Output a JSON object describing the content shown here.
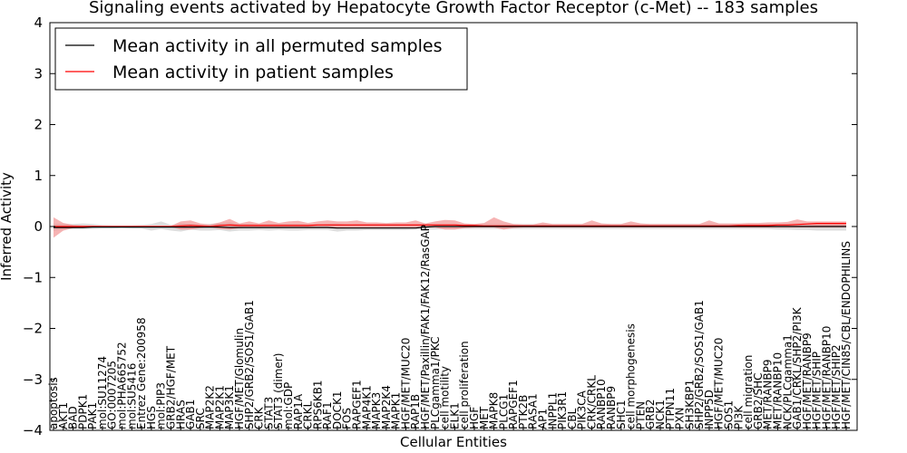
{
  "chart_data": {
    "type": "line",
    "title": "Signaling events activated by Hepatocyte Growth Factor Receptor (c-Met) -- 183 samples",
    "xlabel": "Cellular Entities",
    "ylabel": "Inferred Activity",
    "ylim": [
      -4,
      4
    ],
    "yticks": [
      -4,
      -3,
      -2,
      -1,
      0,
      1,
      2,
      3,
      4
    ],
    "grid": false,
    "legend_position": "top-left",
    "categories": [
      "apoptosis",
      "AKT1",
      "BAD",
      "PDPK1",
      "PAK1",
      "mol:SU11274",
      "GO:0007205",
      "mol:PHA665752",
      "mol:SU5416",
      "Entrez Gene:200958",
      "HGS",
      "mol:PIP3",
      "GRB2/HGF/MET",
      "HRAS",
      "GAB1",
      "SRC",
      "MAP2K2",
      "MAP2K1",
      "MAP3K1",
      "HGF/MET/Glomulin",
      "SHP2/GRB2/SOS1/GAB1",
      "CRK",
      "STAT3",
      "STAT3 (dimer)",
      "mol:GDP",
      "RAP1A",
      "CRKL",
      "RPS6KB1",
      "RAF1",
      "DOCK1",
      "FOS",
      "RAPGEF1",
      "MAP4K1",
      "MAPK3",
      "MAP2K4",
      "MAPK1",
      "HGF/MET/MUC20",
      "RAP1B",
      "HGF/MET/Paxillin/FAK1/FAK12/RasGAP",
      "PLCgamma1/PKC",
      "cell motility",
      "ELK1",
      "cell proliferation",
      "HGF",
      "MET",
      "MAPK8",
      "PLCG1",
      "RAPGEF1",
      "PTK2B",
      "RASA1",
      "AP1",
      "INPPL1",
      "PIK3R1",
      "CBL",
      "PIK3CA",
      "CRK/CRKL",
      "RANBP10",
      "RANBP9",
      "SHC1",
      "cell morphogenesis",
      "PTEN",
      "GRB2",
      "NCK1",
      "PTPN11",
      "PXN",
      "SH3KBP1",
      "SHP2/GRB2/SOS1/GAB1",
      "INPP5D",
      "HGF/MET/MUC20",
      "SOS1",
      "PI3K",
      "cell migration",
      "GRB2/SHC",
      "MET/RANBP9",
      "MET/RANBP10",
      "NCK/PLCgamma1",
      "GAB1/CRKL/SHP2/PI3K",
      "HGF/MET/RANBP9",
      "HGF/MET/SHIP",
      "HGF/MET/RANBP10",
      "HGF/MET/SHIP2",
      "HGF/MET/CIN85/CBL/ENDOPHILINS"
    ],
    "series": [
      {
        "name": "Mean activity in all permuted samples",
        "color": "#000000",
        "values": [
          -0.02,
          -0.02,
          -0.02,
          -0.02,
          -0.01,
          -0.01,
          -0.01,
          -0.01,
          -0.01,
          -0.01,
          -0.01,
          -0.01,
          -0.01,
          -0.01,
          -0.01,
          -0.01,
          -0.01,
          -0.01,
          -0.02,
          -0.02,
          -0.02,
          -0.02,
          -0.02,
          -0.02,
          -0.02,
          -0.02,
          -0.02,
          -0.02,
          -0.02,
          -0.03,
          -0.03,
          -0.03,
          -0.03,
          -0.03,
          -0.03,
          -0.03,
          -0.03,
          -0.03,
          -0.01,
          0.0,
          0.0,
          0.0,
          0.0,
          0.0,
          0.0,
          0.0,
          0.0,
          0.0,
          0.0,
          0.0,
          0.0,
          0.0,
          0.0,
          0.0,
          0.0,
          0.0,
          0.0,
          0.0,
          0.0,
          0.0,
          0.0,
          0.0,
          0.0,
          0.0,
          0.0,
          0.0,
          0.0,
          0.0,
          0.0,
          0.0,
          0.0,
          0.0,
          0.0,
          0.0,
          0.0,
          0.0,
          0.0,
          0.0,
          0.0,
          0.0,
          0.0,
          0.0
        ],
        "band_lower": [
          -0.08,
          -0.06,
          -0.05,
          -0.05,
          -0.05,
          -0.04,
          -0.04,
          -0.03,
          -0.04,
          -0.04,
          -0.08,
          -0.05,
          -0.08,
          -0.1,
          -0.06,
          -0.08,
          -0.08,
          -0.07,
          -0.1,
          -0.08,
          -0.08,
          -0.07,
          -0.08,
          -0.07,
          -0.08,
          -0.08,
          -0.07,
          -0.07,
          -0.07,
          -0.1,
          -0.08,
          -0.08,
          -0.07,
          -0.07,
          -0.07,
          -0.07,
          -0.07,
          -0.06,
          -0.06,
          -0.06,
          -0.05,
          -0.05,
          -0.05,
          -0.05,
          -0.05,
          -0.05,
          -0.05,
          -0.05,
          -0.05,
          -0.05,
          -0.05,
          -0.05,
          -0.05,
          -0.05,
          -0.05,
          -0.05,
          -0.05,
          -0.05,
          -0.05,
          -0.05,
          -0.05,
          -0.05,
          -0.05,
          -0.05,
          -0.05,
          -0.05,
          -0.05,
          -0.05,
          -0.05,
          -0.05,
          -0.05,
          -0.05,
          -0.05,
          -0.05,
          -0.06,
          -0.06,
          -0.07,
          -0.07,
          -0.08,
          -0.08,
          -0.08,
          -0.08
        ],
        "band_upper": [
          0.05,
          0.05,
          0.05,
          0.06,
          0.05,
          0.03,
          0.02,
          0.02,
          0.02,
          0.03,
          0.05,
          0.1,
          0.03,
          0.06,
          0.05,
          0.03,
          0.05,
          0.07,
          0.08,
          0.05,
          0.05,
          0.04,
          0.05,
          0.05,
          0.05,
          0.05,
          0.04,
          0.04,
          0.05,
          0.06,
          0.04,
          0.05,
          0.05,
          0.05,
          0.05,
          0.05,
          0.05,
          0.05,
          0.05,
          0.05,
          0.05,
          0.05,
          0.05,
          0.05,
          0.05,
          0.05,
          0.05,
          0.05,
          0.05,
          0.05,
          0.05,
          0.05,
          0.05,
          0.05,
          0.05,
          0.05,
          0.05,
          0.05,
          0.05,
          0.05,
          0.05,
          0.05,
          0.05,
          0.05,
          0.05,
          0.05,
          0.05,
          0.05,
          0.05,
          0.05,
          0.05,
          0.05,
          0.05,
          0.05,
          0.05,
          0.05,
          0.05,
          0.05,
          0.05,
          0.05,
          0.05,
          0.05
        ]
      },
      {
        "name": "Mean activity in patient samples",
        "color": "#ff0000",
        "values": [
          0.0,
          0.0,
          0.0,
          0.0,
          0.0,
          0.0,
          0.0,
          0.0,
          0.0,
          0.0,
          0.0,
          0.0,
          0.0,
          0.01,
          0.02,
          0.01,
          0.0,
          0.02,
          0.03,
          0.02,
          0.02,
          0.02,
          0.02,
          0.02,
          0.02,
          0.02,
          0.02,
          0.03,
          0.03,
          0.03,
          0.03,
          0.03,
          0.03,
          0.03,
          0.03,
          0.03,
          0.03,
          0.03,
          0.03,
          0.03,
          0.03,
          0.03,
          0.02,
          0.02,
          0.01,
          0.01,
          0.01,
          0.01,
          0.01,
          0.01,
          0.01,
          0.01,
          0.01,
          0.01,
          0.01,
          0.01,
          0.01,
          0.01,
          0.01,
          0.01,
          0.01,
          0.01,
          0.01,
          0.01,
          0.01,
          0.01,
          0.01,
          0.01,
          0.01,
          0.01,
          0.02,
          0.02,
          0.02,
          0.02,
          0.03,
          0.03,
          0.04,
          0.05,
          0.06,
          0.06,
          0.06,
          0.06
        ],
        "band_lower": [
          -0.22,
          -0.08,
          -0.03,
          -0.02,
          -0.02,
          -0.01,
          -0.01,
          -0.01,
          -0.01,
          -0.01,
          -0.01,
          -0.01,
          -0.01,
          -0.06,
          -0.06,
          -0.03,
          -0.02,
          -0.05,
          -0.06,
          -0.03,
          -0.02,
          -0.03,
          -0.02,
          -0.03,
          -0.02,
          -0.02,
          -0.03,
          -0.02,
          -0.02,
          -0.04,
          -0.02,
          -0.02,
          -0.02,
          -0.02,
          -0.02,
          -0.02,
          -0.02,
          -0.02,
          -0.02,
          -0.02,
          -0.06,
          -0.06,
          -0.03,
          -0.02,
          -0.02,
          -0.02,
          -0.06,
          -0.03,
          -0.02,
          -0.02,
          -0.02,
          -0.02,
          -0.02,
          -0.02,
          -0.02,
          -0.02,
          -0.02,
          -0.02,
          -0.02,
          -0.02,
          -0.02,
          -0.02,
          -0.02,
          -0.02,
          -0.02,
          -0.02,
          -0.02,
          -0.02,
          -0.02,
          -0.02,
          -0.02,
          -0.02,
          -0.02,
          -0.02,
          -0.02,
          -0.02,
          -0.02,
          -0.02,
          -0.02,
          -0.02,
          -0.02,
          -0.02
        ],
        "band_upper": [
          0.18,
          0.07,
          0.03,
          0.02,
          0.02,
          0.01,
          0.01,
          0.01,
          0.01,
          0.01,
          0.01,
          0.01,
          0.01,
          0.1,
          0.12,
          0.06,
          0.04,
          0.08,
          0.15,
          0.06,
          0.1,
          0.06,
          0.12,
          0.07,
          0.1,
          0.11,
          0.07,
          0.1,
          0.12,
          0.1,
          0.1,
          0.12,
          0.08,
          0.08,
          0.07,
          0.08,
          0.08,
          0.12,
          0.06,
          0.1,
          0.13,
          0.12,
          0.06,
          0.05,
          0.07,
          0.18,
          0.1,
          0.05,
          0.04,
          0.04,
          0.08,
          0.05,
          0.05,
          0.05,
          0.05,
          0.12,
          0.06,
          0.05,
          0.05,
          0.1,
          0.06,
          0.05,
          0.05,
          0.05,
          0.05,
          0.05,
          0.05,
          0.12,
          0.06,
          0.06,
          0.06,
          0.07,
          0.07,
          0.08,
          0.08,
          0.09,
          0.14,
          0.1,
          0.1,
          0.1,
          0.1,
          0.1
        ]
      }
    ]
  }
}
